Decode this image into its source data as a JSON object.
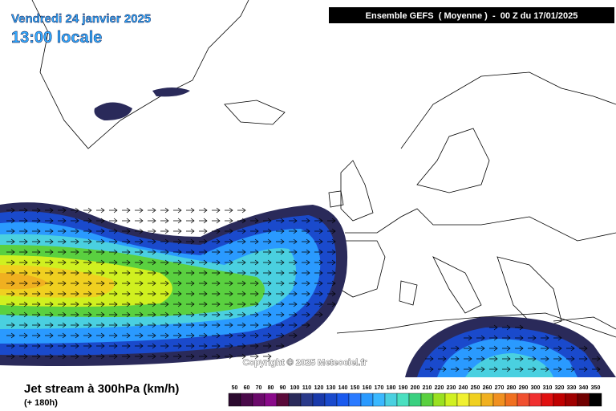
{
  "header": {
    "date": "Vendredi 24 janvier 2025",
    "time": "13:00 locale",
    "run": "Ensemble GEFS  ( Moyenne )  -  00 Z du 17/01/2025"
  },
  "copyright": "Copyright © 2025 Meteociel.fr",
  "footer": {
    "title": "Jet stream à 300hPa (km/h)",
    "lead": "(+ 180h)"
  },
  "legend": {
    "labels": [
      50,
      60,
      70,
      80,
      90,
      100,
      110,
      120,
      130,
      140,
      150,
      160,
      170,
      180,
      190,
      200,
      210,
      220,
      230,
      240,
      250,
      260,
      270,
      280,
      290,
      300,
      310,
      320,
      330,
      340,
      350
    ],
    "colors": [
      "#2b0a2e",
      "#4a0a4a",
      "#6b0a6b",
      "#8a0a8a",
      "#5a0a3a",
      "#2a2a5a",
      "#2a3a8a",
      "#1a3aaa",
      "#1a4acc",
      "#1a5aee",
      "#2a7aff",
      "#2a9aff",
      "#3ab8ff",
      "#4ad0e0",
      "#4ae0c0",
      "#3ad080",
      "#5ad040",
      "#9ae020",
      "#d0f020",
      "#f0f030",
      "#f0d020",
      "#f0b020",
      "#f09020",
      "#f07020",
      "#f05030",
      "#f03030",
      "#e01010",
      "#c00000",
      "#a00000",
      "#700000",
      "#000000"
    ]
  }
}
